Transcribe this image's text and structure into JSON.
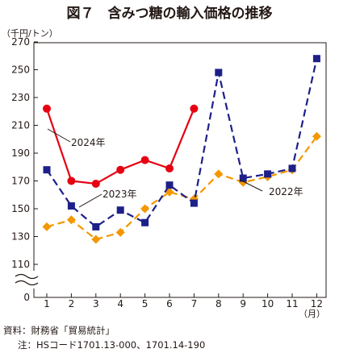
{
  "chart_data": {
    "type": "line",
    "title": "図７　含みつ糖の輸入価格の推移",
    "ylabel": "（千円/トン）",
    "xunit": "（月）",
    "x": [
      "1",
      "2",
      "3",
      "4",
      "5",
      "6",
      "7",
      "8",
      "9",
      "10",
      "11",
      "12"
    ],
    "y_ticks": [
      "0",
      "110",
      "130",
      "150",
      "170",
      "190",
      "210",
      "230",
      "250",
      "270"
    ],
    "ylim": [
      110,
      270
    ],
    "axis_break": true,
    "grid": false,
    "series": [
      {
        "name": "2024年",
        "color": "#e60012",
        "line": "solid",
        "marker": "circle",
        "values": [
          222,
          170,
          168,
          178,
          185,
          179,
          222,
          null,
          null,
          null,
          null,
          null
        ]
      },
      {
        "name": "2023年",
        "color": "#f39800",
        "line": "dashed",
        "marker": "diamond",
        "values": [
          137,
          142,
          128,
          133,
          150,
          162,
          157,
          175,
          169,
          173,
          178,
          202
        ]
      },
      {
        "name": "2022年",
        "color": "#1d2088",
        "line": "dashed",
        "marker": "square",
        "values": [
          178,
          152,
          137,
          149,
          140,
          167,
          154,
          248,
          172,
          175,
          179,
          258
        ]
      }
    ],
    "labels": {
      "s2024": "2024年",
      "s2023": "2023年",
      "s2022": "2022年"
    }
  },
  "footnotes": {
    "source": "資料：財務省「貿易統計」",
    "note": "注：HSコード1701.13-000、1701.14-190"
  }
}
